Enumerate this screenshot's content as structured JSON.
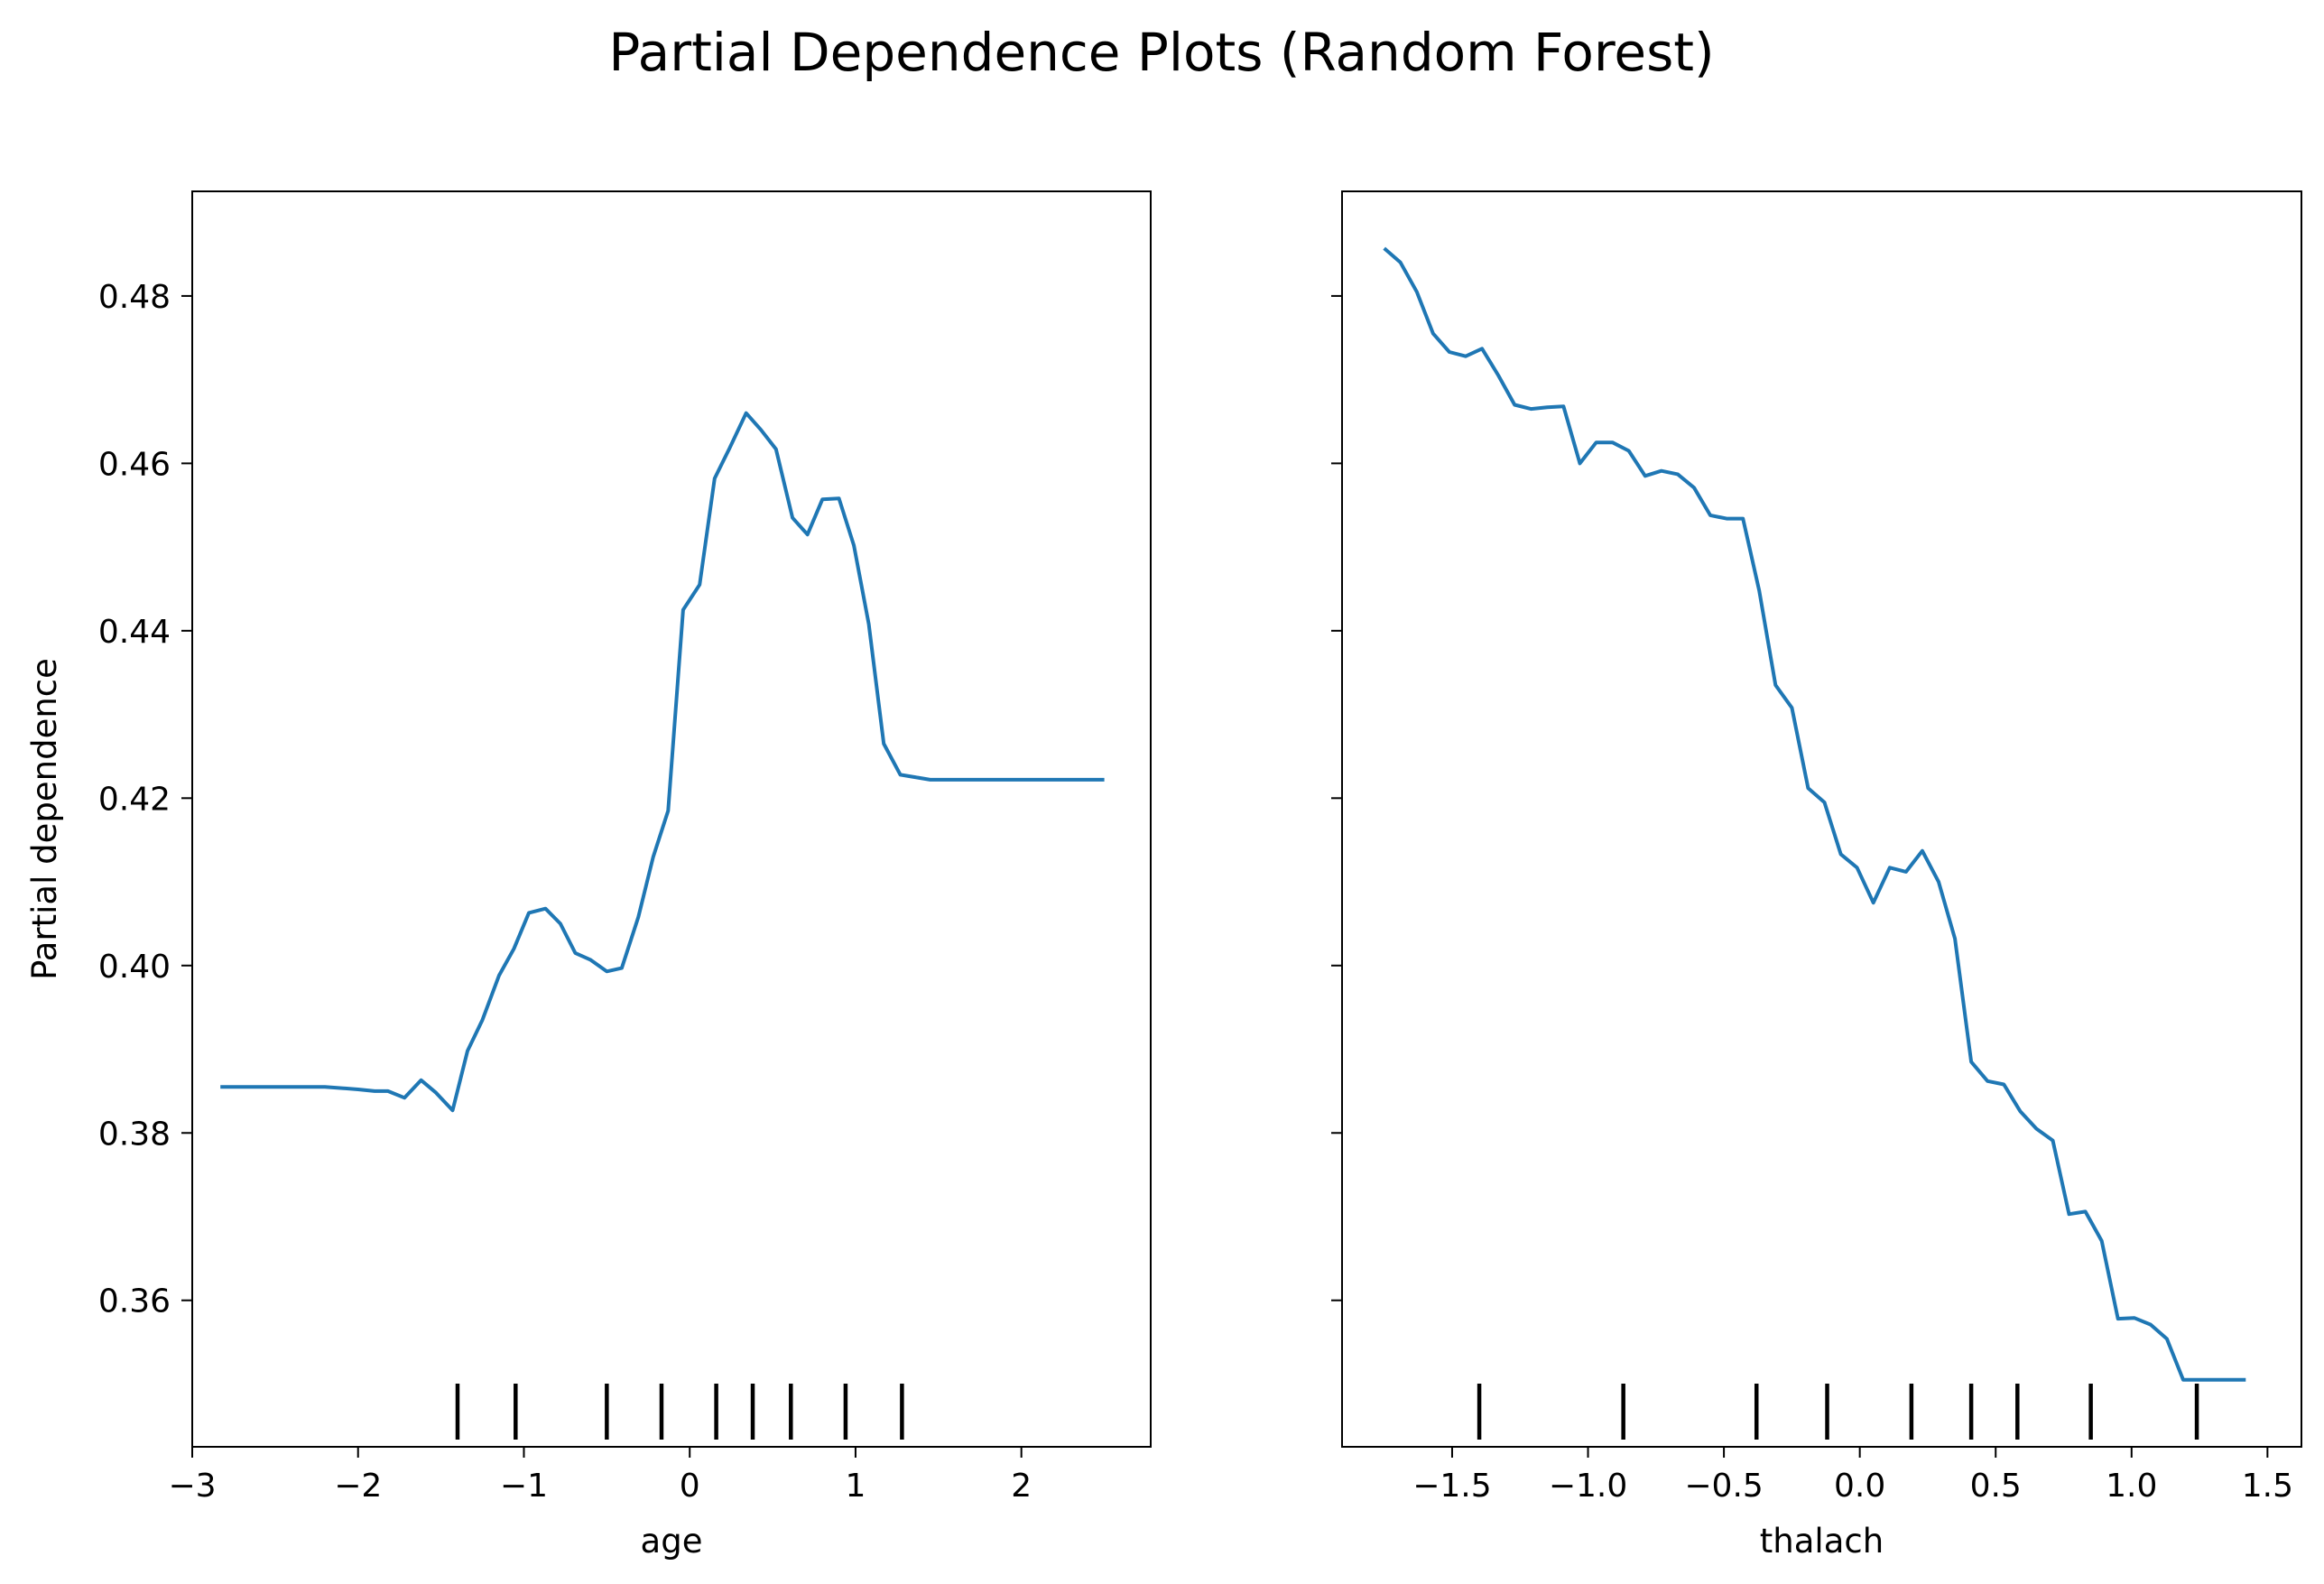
{
  "figure": {
    "title": "Partial Dependence Plots (Random Forest)",
    "line_color": "#1f77b4",
    "rug_color": "#000000"
  },
  "chart_data": [
    {
      "type": "line",
      "title": "",
      "xlabel": "age",
      "ylabel": "Partial dependence",
      "xlim": [
        -3.0,
        2.78
      ],
      "ylim": [
        0.3425,
        0.4925
      ],
      "grid": false,
      "xticks": [
        -3,
        -2,
        -1,
        0,
        1,
        2
      ],
      "xtick_labels": [
        "−3",
        "−2",
        "−1",
        "0",
        "1",
        "2"
      ],
      "yticks": [
        0.36,
        0.38,
        0.4,
        0.42,
        0.44,
        0.46,
        0.48
      ],
      "ytick_labels": [
        "0.36",
        "0.38",
        "0.40",
        "0.42",
        "0.44",
        "0.46",
        "0.48"
      ],
      "series": [
        {
          "x": [
            -2.83,
            -2.5,
            -2.2,
            -2.0,
            -1.9,
            -1.82,
            -1.72,
            -1.62,
            -1.53,
            -1.43,
            -1.34,
            -1.25,
            -1.15,
            -1.06,
            -0.97,
            -0.87,
            -0.78,
            -0.69,
            -0.6,
            -0.5,
            -0.41,
            -0.31,
            -0.22,
            -0.13,
            -0.04,
            0.06,
            0.15,
            0.24,
            0.34,
            0.43,
            0.52,
            0.62,
            0.71,
            0.8,
            0.9,
            0.99,
            1.08,
            1.17,
            1.27,
            1.36,
            1.45,
            1.55,
            1.64,
            1.73,
            1.83,
            2.0,
            2.17,
            2.35,
            2.5
          ],
          "y": [
            0.3855,
            0.3855,
            0.3855,
            0.3852,
            0.385,
            0.385,
            0.3842,
            0.3863,
            0.3848,
            0.3827,
            0.3898,
            0.3935,
            0.3988,
            0.402,
            0.4063,
            0.4068,
            0.405,
            0.4015,
            0.4007,
            0.3993,
            0.3997,
            0.4058,
            0.413,
            0.4185,
            0.4425,
            0.4455,
            0.4582,
            0.4618,
            0.466,
            0.464,
            0.4617,
            0.4535,
            0.4515,
            0.4557,
            0.4558,
            0.4502,
            0.4408,
            0.4265,
            0.4228,
            0.4225,
            0.4222,
            0.4222,
            0.4222,
            0.4222,
            0.4222,
            0.4222,
            0.4222,
            0.4222,
            0.4222
          ]
        }
      ],
      "rug": [
        -1.4,
        -1.05,
        -0.5,
        -0.17,
        0.16,
        0.38,
        0.61,
        0.94,
        1.28
      ]
    },
    {
      "type": "line",
      "title": "",
      "xlabel": "thalach",
      "ylabel": "",
      "xlim": [
        -1.905,
        1.625
      ],
      "ylim": [
        0.3425,
        0.4925
      ],
      "grid": false,
      "xticks": [
        -1.5,
        -1.0,
        -0.5,
        0.0,
        0.5,
        1.0,
        1.5
      ],
      "xtick_labels": [
        "−1.5",
        "−1.0",
        "−0.5",
        "0.0",
        "0.5",
        "1.0",
        "1.5"
      ],
      "yticks": [
        0.36,
        0.38,
        0.4,
        0.42,
        0.44,
        0.46,
        0.48
      ],
      "ytick_labels": [],
      "series": [
        {
          "x": [
            -1.75,
            -1.69,
            -1.63,
            -1.57,
            -1.51,
            -1.45,
            -1.39,
            -1.33,
            -1.27,
            -1.21,
            -1.15,
            -1.09,
            -1.03,
            -0.97,
            -0.91,
            -0.85,
            -0.79,
            -0.73,
            -0.67,
            -0.61,
            -0.55,
            -0.49,
            -0.43,
            -0.37,
            -0.31,
            -0.25,
            -0.19,
            -0.13,
            -0.07,
            -0.01,
            0.05,
            0.11,
            0.17,
            0.23,
            0.29,
            0.35,
            0.41,
            0.47,
            0.53,
            0.59,
            0.65,
            0.71,
            0.77,
            0.83,
            0.89,
            0.95,
            1.01,
            1.07,
            1.13,
            1.19,
            1.25,
            1.31,
            1.37,
            1.42
          ],
          "y": [
            0.4857,
            0.484,
            0.4805,
            0.4755,
            0.4733,
            0.4728,
            0.4737,
            0.4705,
            0.467,
            0.4665,
            0.4667,
            0.4668,
            0.46,
            0.4625,
            0.4625,
            0.4615,
            0.4585,
            0.4591,
            0.4587,
            0.4571,
            0.4538,
            0.4534,
            0.4534,
            0.4448,
            0.4335,
            0.4308,
            0.4212,
            0.4195,
            0.4133,
            0.4117,
            0.4075,
            0.4117,
            0.4112,
            0.4137,
            0.41,
            0.4032,
            0.3885,
            0.3862,
            0.3858,
            0.3826,
            0.3805,
            0.3791,
            0.3703,
            0.3706,
            0.3671,
            0.3578,
            0.3579,
            0.3571,
            0.3554,
            0.3505,
            0.3505,
            0.3505,
            0.3505,
            0.3505
          ]
        }
      ],
      "rug": [
        -1.4,
        -0.87,
        -0.38,
        -0.12,
        0.19,
        0.41,
        0.58,
        0.85,
        1.24
      ]
    }
  ]
}
